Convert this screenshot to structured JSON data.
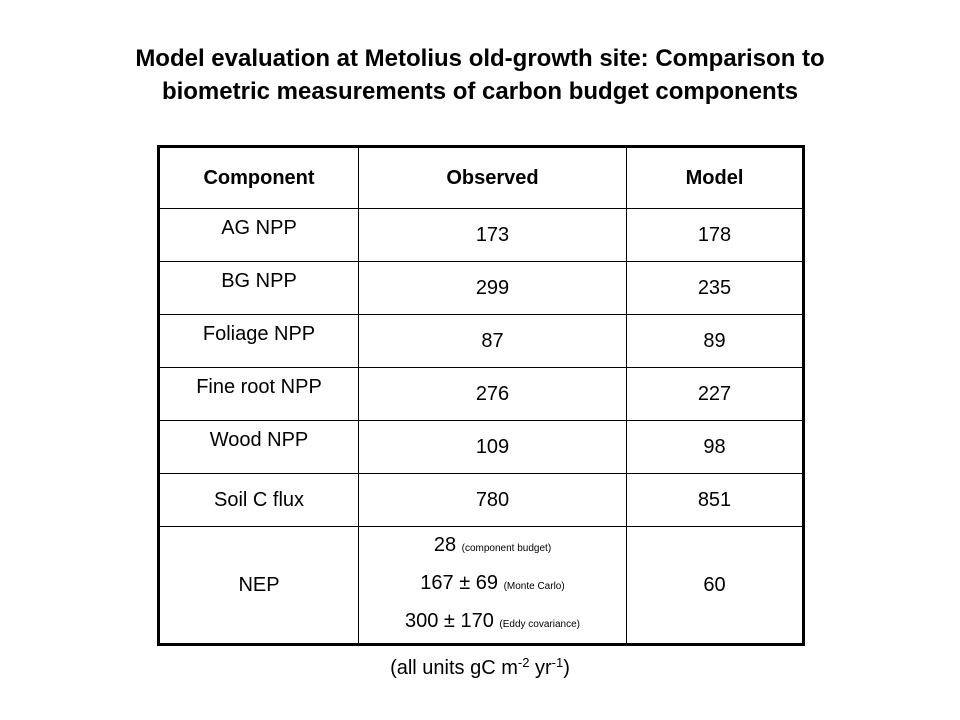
{
  "title": {
    "line1": "Model evaluation at Metolius old-growth site: Comparison to",
    "line2": "biometric measurements of carbon budget components"
  },
  "table": {
    "headers": [
      "Component",
      "Observed",
      "Model"
    ],
    "rows": [
      {
        "component": "AG NPP",
        "observed": "173",
        "model": "178"
      },
      {
        "component": "BG NPP",
        "observed": "299",
        "model": "235"
      },
      {
        "component": "Foliage NPP",
        "observed": "87",
        "model": "89"
      },
      {
        "component": "Fine root NPP",
        "observed": "276",
        "model": "227"
      },
      {
        "component": "Wood NPP",
        "observed": "109",
        "model": "98"
      },
      {
        "component": "Soil C flux",
        "observed": "780",
        "model": "851"
      }
    ],
    "nep": {
      "component": "NEP",
      "observed_lines": [
        {
          "value": "28",
          "note": "(component budget)"
        },
        {
          "value": "167 ± 69",
          "note": "(Monte Carlo)"
        },
        {
          "value": "300 ± 170",
          "note": "(Eddy covariance)"
        }
      ],
      "model": "60"
    }
  },
  "units_note": {
    "prefix": "(all units gC m",
    "exp1": "-2",
    "middle": " yr",
    "exp2": "-1",
    "suffix": ")"
  }
}
